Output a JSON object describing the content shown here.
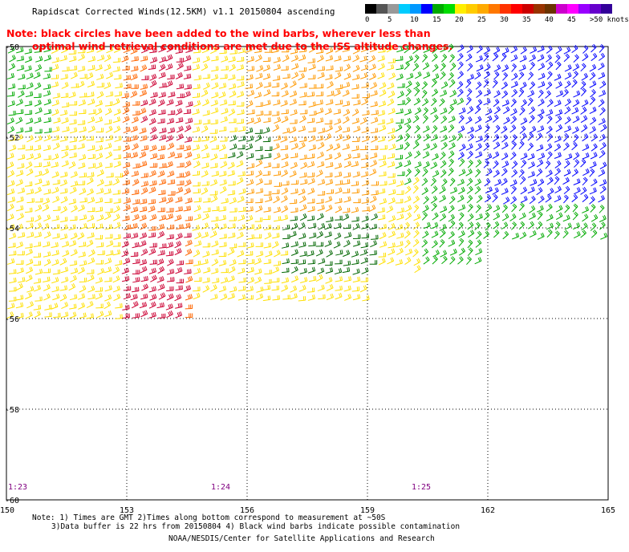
{
  "header": {
    "title": "Rapidscat Corrected Winds(12.5KM) v1.1 20150804 ascending",
    "note_line1": "Note: black circles have been added to the wind barbs, wherever less than",
    "note_line2": "optimal wind retrieval conditions are met due to the ISS altitude changes."
  },
  "legend": {
    "units": "knots",
    "labels": [
      "0",
      "5",
      "10",
      "15",
      "20",
      "25",
      "30",
      "35",
      "40",
      "45",
      ">50 knots"
    ],
    "colors": [
      "#000000",
      "#555555",
      "#999999",
      "#00ccff",
      "#0099ff",
      "#0000ff",
      "#00aa00",
      "#00dd00",
      "#ffee00",
      "#ffcc00",
      "#ffaa00",
      "#ff7700",
      "#ff3300",
      "#ff0000",
      "#cc0000",
      "#993300",
      "#6b3300",
      "#cc00cc",
      "#ff00ff",
      "#9900ff",
      "#6600cc",
      "#330099"
    ]
  },
  "axes": {
    "lon_labels": [
      "150",
      "153",
      "156",
      "159",
      "162",
      "165"
    ],
    "lat_labels": [
      "-50",
      "-52",
      "-54",
      "-56",
      "-58",
      "-60"
    ],
    "lon_range": [
      150,
      165
    ],
    "lat_range": [
      -50,
      -60
    ]
  },
  "time_labels": [
    "1:23",
    "1:24",
    "1:25"
  ],
  "footer": {
    "line1": "Note: 1) Times are GMT 2)Times along bottom correspond to measurement at ~50S",
    "line2": "3)Data buffer is 22 hrs from 20150804 4) Black wind barbs indicate possible contamination",
    "line3": "NOAA/NESDIS/Center for Satellite Applications and Research"
  },
  "swath": {
    "colors": {
      "blue": "#0000ff",
      "green": "#00aa00",
      "lime": "#00dd00",
      "yellow": "#ffe000",
      "orange": "#ff9900",
      "darkorange": "#ff6600",
      "red": "#ff3300",
      "crimson": "#cc0033",
      "darkgreen": "#006600",
      "black": "#000000"
    }
  }
}
